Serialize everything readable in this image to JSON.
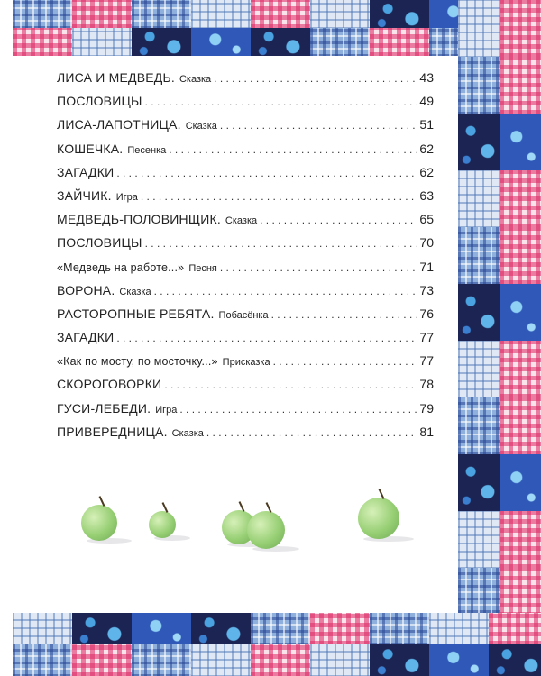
{
  "toc": [
    {
      "title": "ЛИСА И МЕДВЕДЬ.",
      "subtitle": "Сказка",
      "page": "43"
    },
    {
      "title": "ПОСЛОВИЦЫ",
      "subtitle": "",
      "page": "49"
    },
    {
      "title": "ЛИСА-ЛАПОТНИЦА.",
      "subtitle": "Сказка",
      "page": "51"
    },
    {
      "title": "КОШЕЧКА.",
      "subtitle": "Песенка",
      "page": "62"
    },
    {
      "title": "ЗАГАДКИ",
      "subtitle": "",
      "page": "62"
    },
    {
      "title": "ЗАЙЧИК.",
      "subtitle": "Игра",
      "page": "63"
    },
    {
      "title": "МЕДВЕДЬ-ПОЛОВИНЩИК.",
      "subtitle": "Сказка",
      "page": "65"
    },
    {
      "title": "ПОСЛОВИЦЫ",
      "subtitle": "",
      "page": "70"
    },
    {
      "title": "«Медведь на работе...»",
      "subtitle": "Песня",
      "page": "71"
    },
    {
      "title": "ВОРОНА.",
      "subtitle": "Сказка",
      "page": "73"
    },
    {
      "title": "РАСТОРОПНЫЕ РЕБЯТА.",
      "subtitle": "Побасёнка",
      "page": "76"
    },
    {
      "title": "ЗАГАДКИ",
      "subtitle": "",
      "page": "77"
    },
    {
      "title": "«Как по мосту, по мосточку...»",
      "subtitle": "Присказка",
      "page": "77"
    },
    {
      "title": "СКОРОГОВОРКИ",
      "subtitle": "",
      "page": "78"
    },
    {
      "title": "ГУСИ-ЛЕБЕДИ.",
      "subtitle": "Игра",
      "page": "79"
    },
    {
      "title": "ПРИВЕРЕДНИЦА.",
      "subtitle": "Сказка",
      "page": "81"
    }
  ],
  "colors": {
    "plaid_blue": "#8fb0dc",
    "gingham_pink": "#e0286a",
    "navy_floral": "#1b2453",
    "apple_green": "#97cf74"
  }
}
